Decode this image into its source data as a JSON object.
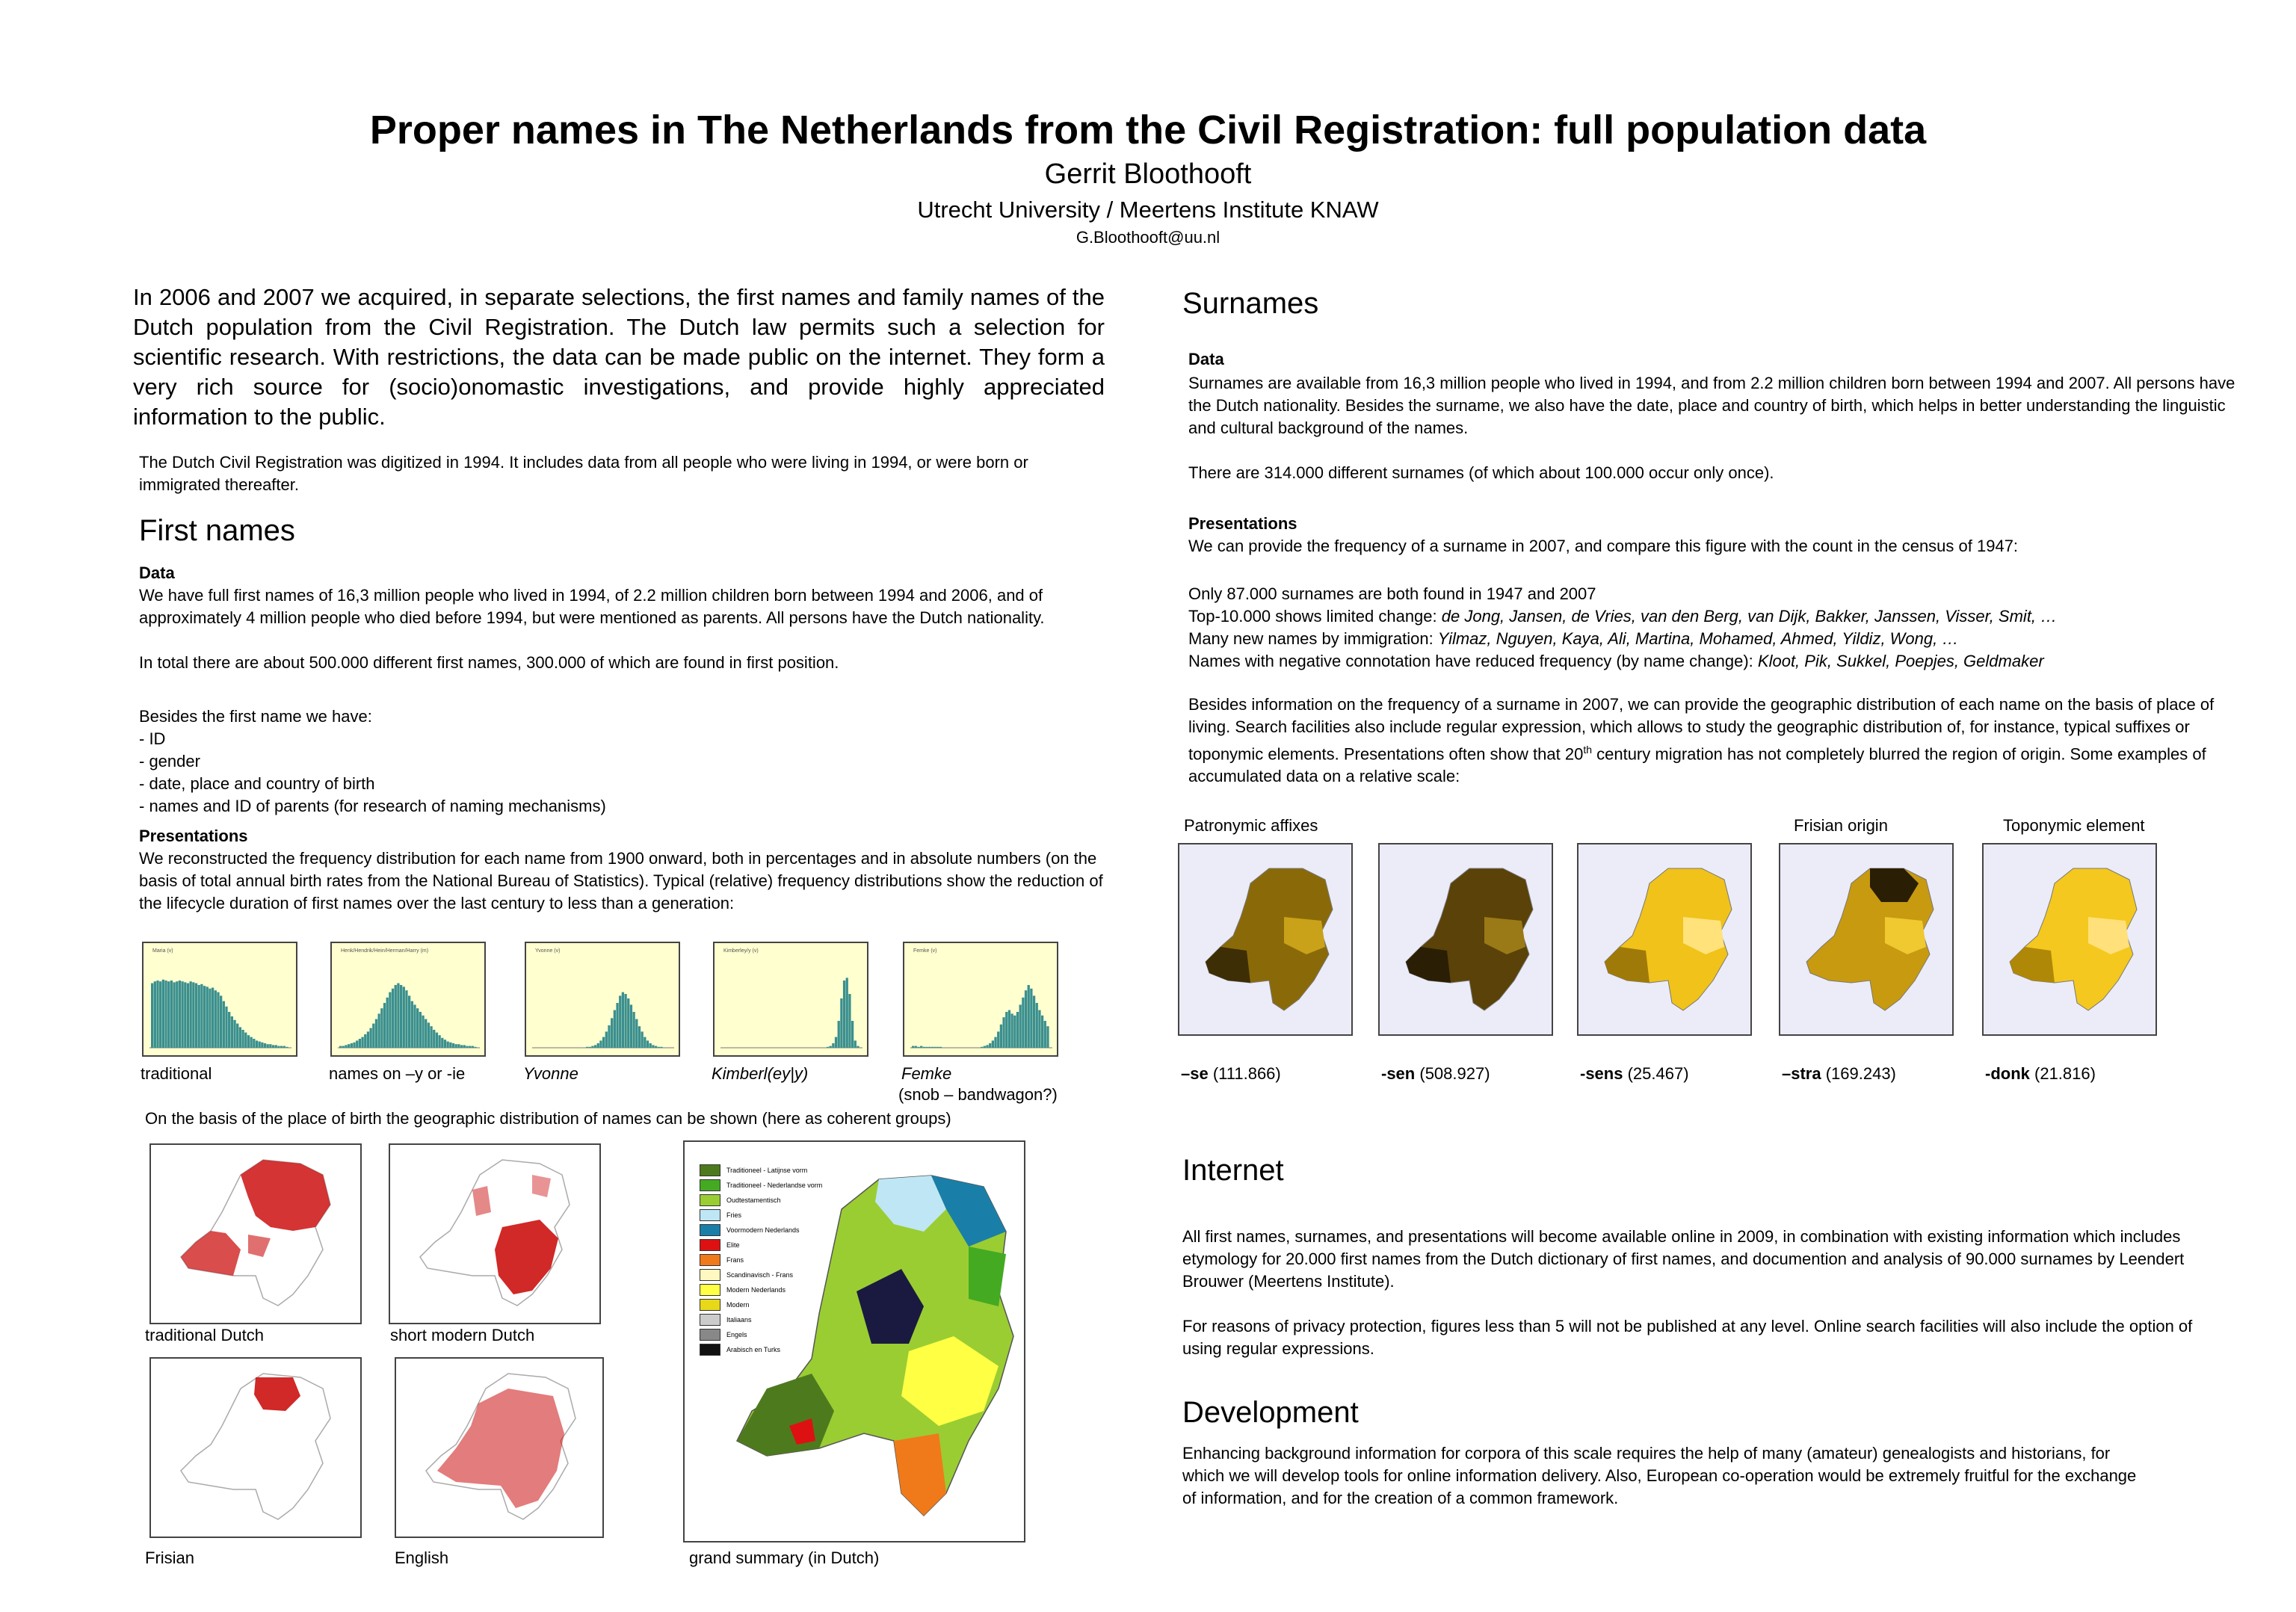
{
  "header": {
    "title": "Proper names in The Netherlands from  the Civil Registration: full population data",
    "author": "Gerrit Bloothooft",
    "affiliation": "Utrecht University / Meertens Institute KNAW",
    "email": "G.Bloothooft@uu.nl"
  },
  "intro": {
    "lead": "In 2006 and 2007 we acquired, in separate selections, the first names and family names of the Dutch population from the Civil Registration. The Dutch law permits such a selection for scientific research. With restrictions, the data can be made public on the internet. They form a very rich source for (socio)onomastic investigations, and provide highly appreciated information to the public.",
    "note": "The Dutch Civil Registration was digitized in 1994. It includes data from all people who were living in 1994, or were born or immigrated thereafter."
  },
  "first_names": {
    "heading": "First names",
    "data_heading": "Data",
    "data_text": "We have full first names of 16,3 million people who lived in 1994, of 2.2 million children born between 1994 and 2006, and of approximately 4 million people who died before 1994, but were mentioned as parents. All persons have the Dutch nationality.\n\nIn total there are about 500.000 different first names, 300.000 of which are found in first position.",
    "besides_text": "Besides the first name we have:\n- ID\n- gender\n- date, place and country of birth\n- names and ID of parents (for research of naming mechanisms)",
    "presentations_heading": "Presentations",
    "presentations_text": "We reconstructed the frequency distribution for each name from 1900 onward, both in percentages and in absolute numbers (on the basis of total annual birth rates from the National Bureau of Statistics). Typical (relative) frequency distributions show the reduction of the lifecycle duration of first names over the last century to less than a generation:",
    "histograms": [
      {
        "caption": "traditional",
        "italic": false,
        "label": "Maria (v)",
        "values": [
          0.72,
          0.74,
          0.75,
          0.74,
          0.76,
          0.75,
          0.74,
          0.75,
          0.73,
          0.74,
          0.75,
          0.74,
          0.73,
          0.72,
          0.74,
          0.73,
          0.72,
          0.7,
          0.71,
          0.69,
          0.68,
          0.66,
          0.67,
          0.64,
          0.62,
          0.58,
          0.52,
          0.46,
          0.4,
          0.35,
          0.31,
          0.27,
          0.23,
          0.2,
          0.17,
          0.14,
          0.12,
          0.1,
          0.08,
          0.07,
          0.06,
          0.05,
          0.04,
          0.04,
          0.03,
          0.03,
          0.02,
          0.02,
          0.02,
          0.01
        ]
      },
      {
        "caption": "names on –y or -ie",
        "italic": false,
        "label": "Henk/Hendrik/Hein/Herman/Harry (m)",
        "values": [
          0.02,
          0.02,
          0.03,
          0.04,
          0.05,
          0.06,
          0.08,
          0.1,
          0.12,
          0.15,
          0.18,
          0.22,
          0.27,
          0.32,
          0.38,
          0.44,
          0.5,
          0.56,
          0.62,
          0.66,
          0.7,
          0.72,
          0.7,
          0.68,
          0.64,
          0.58,
          0.52,
          0.48,
          0.44,
          0.4,
          0.36,
          0.32,
          0.28,
          0.24,
          0.2,
          0.17,
          0.14,
          0.11,
          0.09,
          0.07,
          0.06,
          0.05,
          0.04,
          0.04,
          0.03,
          0.03,
          0.02,
          0.02,
          0.02,
          0.01
        ]
      },
      {
        "caption": "Yvonne",
        "italic": true,
        "label": "Yvonne (v)",
        "values": [
          0,
          0,
          0,
          0,
          0,
          0,
          0,
          0,
          0,
          0,
          0,
          0,
          0,
          0,
          0,
          0,
          0,
          0,
          0,
          0.01,
          0.01,
          0.02,
          0.03,
          0.05,
          0.08,
          0.12,
          0.18,
          0.25,
          0.33,
          0.42,
          0.5,
          0.58,
          0.62,
          0.6,
          0.55,
          0.48,
          0.4,
          0.32,
          0.24,
          0.18,
          0.12,
          0.08,
          0.05,
          0.03,
          0.02,
          0.01,
          0.01,
          0,
          0,
          0
        ]
      },
      {
        "caption": "Kimberl(ey|y)",
        "italic": true,
        "label": "Kimberley/y (v)",
        "values": [
          0,
          0,
          0,
          0,
          0,
          0,
          0,
          0,
          0,
          0,
          0,
          0,
          0,
          0,
          0,
          0,
          0,
          0,
          0,
          0,
          0,
          0,
          0,
          0,
          0,
          0,
          0,
          0,
          0,
          0,
          0,
          0,
          0,
          0,
          0,
          0,
          0,
          0,
          0.01,
          0.02,
          0.05,
          0.12,
          0.3,
          0.55,
          0.75,
          0.78,
          0.6,
          0.3,
          0.08,
          0.02
        ]
      },
      {
        "caption": "Femke",
        "italic": true,
        "label": "Femke (v)",
        "values": [
          0.02,
          0.02,
          0.01,
          0.02,
          0.01,
          0.01,
          0.01,
          0.01,
          0.01,
          0.01,
          0.01,
          0,
          0,
          0,
          0,
          0,
          0,
          0,
          0,
          0,
          0,
          0,
          0,
          0,
          0,
          0.01,
          0.02,
          0.03,
          0.05,
          0.08,
          0.12,
          0.18,
          0.26,
          0.34,
          0.4,
          0.42,
          0.38,
          0.36,
          0.4,
          0.48,
          0.56,
          0.64,
          0.7,
          0.66,
          0.58,
          0.5,
          0.42,
          0.36,
          0.3,
          0.24
        ]
      }
    ],
    "femke_note": "(snob – bandwagon?)",
    "geo_text": "On the basis of the place of birth the geographic distribution of names can be shown (here as coherent groups)",
    "map_captions": [
      "traditional Dutch",
      "short modern Dutch",
      "Frisian",
      "English",
      "grand summary (in Dutch)"
    ],
    "legend": [
      {
        "label": "Traditioneel - Latijnse vorm",
        "color": "#4e7a1e"
      },
      {
        "label": "Traditioneel - Nederlandse vorm",
        "color": "#44aa22"
      },
      {
        "label": "Oudtestamentisch",
        "color": "#9acd32"
      },
      {
        "label": "Fries",
        "color": "#bfe6f5"
      },
      {
        "label": "Voormodern Nederlands",
        "color": "#1a7fa8"
      },
      {
        "label": "Elite",
        "color": "#dd1111"
      },
      {
        "label": "Frans",
        "color": "#f07a1a"
      },
      {
        "label": "Scandinavisch - Frans",
        "color": "#fff8c0"
      },
      {
        "label": "Modern Nederlands",
        "color": "#ffff44"
      },
      {
        "label": "Modern",
        "color": "#e8d81a"
      },
      {
        "label": "Italiaans",
        "color": "#cccccc"
      },
      {
        "label": "Engels",
        "color": "#888888"
      },
      {
        "label": "Arabisch en Turks",
        "color": "#111111"
      }
    ]
  },
  "surnames": {
    "heading": "Surnames",
    "data_heading": "Data",
    "data_text": "Surnames are available from 16,3 million people who lived in 1994, and from 2.2 million children born between 1994 and 2007. All persons have the Dutch nationality. Besides the surname, we also have the date, place and country of birth, which helps in better understanding the linguistic and cultural background of the names.\n\nThere are 314.000 different surnames (of which about 100.000 occur only once).",
    "presentations_heading": "Presentations",
    "presentations_intro": "We can provide the frequency of a surname in 2007, and compare this figure with the count in the census of 1947:",
    "only_line": "Only 87.000 surnames are both found in 1947 and 2007",
    "top_prefix": "Top-10.000 shows limited change: ",
    "top_names": "de Jong, Jansen, de Vries, van den Berg, van Dijk, Bakker, Janssen, Visser, Smit, …",
    "immig_prefix": "Many new names by immigration: ",
    "immig_names": "Yilmaz, Nguyen, Kaya, Ali, Martina, Mohamed, Ahmed, Yildiz, Wong, …",
    "neg_prefix": "Names with negative connotation have reduced frequency (by name change): ",
    "neg_names": "Kloot, Pik, Sukkel, Poepjes, Geldmaker",
    "geo_text_1": "Besides information on the frequency of a surname in 2007, we can provide the geographic distribution of each name on the basis of place of living. Search facilities also include regular expression, which allows to study the geographic distribution of, for instance, typical suffixes or toponymic elements. Presentations often show that 20",
    "geo_sup": "th",
    "geo_text_2": " century migration has not completely blurred the region of origin. Some examples of accumulated data on a relative scale:",
    "group_labels": [
      "Patronymic affixes",
      "Frisian origin",
      "Toponymic element"
    ],
    "maps": [
      {
        "suffix": "–se",
        "count": "(111.866)",
        "base": "#8a6a08",
        "dark": "#3d2e05",
        "light": "#c9a21a"
      },
      {
        "suffix": "-sen",
        "count": "(508.927)",
        "base": "#5a4208",
        "dark": "#2a1e04",
        "light": "#9a7a16"
      },
      {
        "suffix": "-sens",
        "count": "(25.467)",
        "base": "#f0c21a",
        "dark": "#a07a08",
        "light": "#ffe27a"
      },
      {
        "suffix": "–stra",
        "count": "(169.243)",
        "base": "#c89a10",
        "dark": "#2a1e04",
        "light": "#f0c830"
      },
      {
        "suffix": "-donk",
        "count": "(21.816)",
        "base": "#f4c81e",
        "dark": "#b08808",
        "light": "#ffe07a"
      }
    ]
  },
  "internet": {
    "heading": "Internet",
    "text": "All first names, surnames, and presentations will become available online in 2009, in combination with existing information which includes etymology for 20.000 first names from the Dutch dictionary of first names, and documention and analysis of 90.000 surnames by Leendert Brouwer (Meertens Institute).\n\nFor reasons of privacy protection, figures less than 5 will not be published at any level. Online search facilities will also include the option of using regular expressions."
  },
  "development": {
    "heading": "Development",
    "text": "Enhancing background information for corpora of this scale requires the help of many (amateur) genealogists and historians, for which we will develop tools for online information delivery. Also, European co-operation would be extremely fruitful for the exchange of information, and for the creation of a common framework."
  },
  "colors": {
    "histogram_bg": "#ffffd0",
    "histogram_bar": "#3a8f8f",
    "name_map_red": "#cc1111",
    "surname_map_bg": "#ececf8"
  }
}
